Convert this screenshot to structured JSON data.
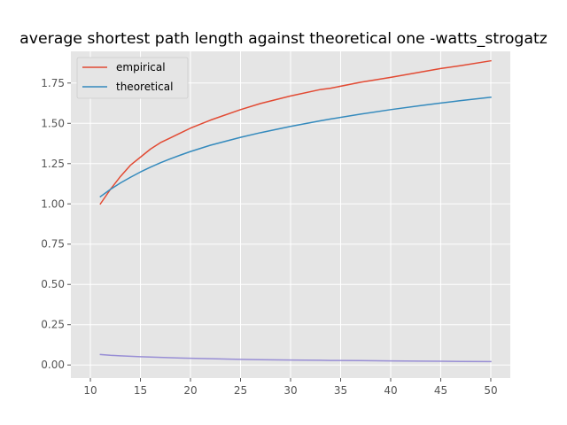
{
  "chart_data": {
    "type": "line",
    "title": "average shortest path length against theoretical one -watts_strogatz",
    "xlabel": "",
    "ylabel": "",
    "xlim": [
      8.05,
      51.95
    ],
    "ylim": [
      -0.0813,
      1.9467
    ],
    "x_ticks": [
      10,
      15,
      20,
      25,
      30,
      35,
      40,
      45,
      50
    ],
    "x_tick_labels": [
      "10",
      "15",
      "20",
      "25",
      "30",
      "35",
      "40",
      "45",
      "50"
    ],
    "y_ticks": [
      0.0,
      0.25,
      0.5,
      0.75,
      1.0,
      1.25,
      1.5,
      1.75
    ],
    "y_tick_labels": [
      "0.00",
      "0.25",
      "0.50",
      "0.75",
      "1.00",
      "1.25",
      "1.50",
      "1.75"
    ],
    "grid": true,
    "legend_position": "top-left",
    "background_color": "#E5E5E5",
    "grid_color": "#FFFFFF",
    "x": [
      11,
      12,
      13,
      14,
      15,
      16,
      17,
      18,
      19,
      20,
      22,
      25,
      27,
      30,
      33,
      34,
      37,
      40,
      43,
      45,
      47,
      50
    ],
    "series": [
      {
        "name": "empirical",
        "color": "#E24A33",
        "values": [
          1.0,
          1.09,
          1.17,
          1.24,
          1.29,
          1.34,
          1.38,
          1.41,
          1.44,
          1.47,
          1.52,
          1.585,
          1.623,
          1.67,
          1.71,
          1.718,
          1.755,
          1.785,
          1.818,
          1.84,
          1.858,
          1.888
        ]
      },
      {
        "name": "theoretical",
        "color": "#348ABD",
        "values": [
          1.045,
          1.09,
          1.13,
          1.165,
          1.198,
          1.228,
          1.255,
          1.28,
          1.303,
          1.325,
          1.364,
          1.413,
          1.442,
          1.481,
          1.516,
          1.527,
          1.557,
          1.585,
          1.61,
          1.626,
          1.641,
          1.662
        ]
      },
      {
        "name": "",
        "color": "#988ED5",
        "values": [
          0.065,
          0.06,
          0.057,
          0.054,
          0.051,
          0.049,
          0.047,
          0.045,
          0.043,
          0.042,
          0.039,
          0.035,
          0.033,
          0.031,
          0.029,
          0.028,
          0.027,
          0.025,
          0.024,
          0.023,
          0.022,
          0.021
        ]
      }
    ]
  }
}
